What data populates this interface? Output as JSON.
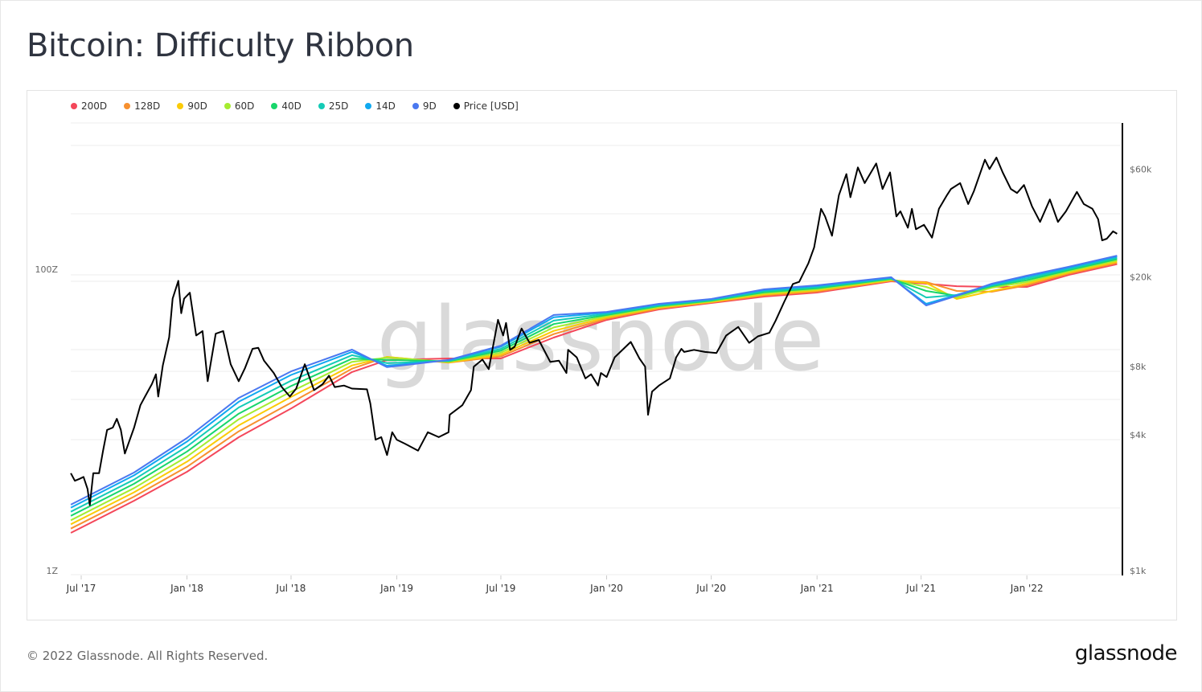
{
  "title": "Bitcoin: Difficulty Ribbon",
  "footer": {
    "copyright": "© 2022 Glassnode. All Rights Reserved.",
    "logo": "glassnode"
  },
  "watermark": "glassnode",
  "chart_data": {
    "type": "line",
    "title": "Bitcoin: Difficulty Ribbon",
    "legend_position": "top-left",
    "grid": true,
    "x_ticks": [
      "Jul '17",
      "Jan '18",
      "Jul '18",
      "Jan '19",
      "Jul '19",
      "Jan '20",
      "Jul '20",
      "Jan '21",
      "Jul '21",
      "Jan '22"
    ],
    "x_range": [
      "2017-06-13",
      "2022-06-07"
    ],
    "left_axis": {
      "scale": "log",
      "ticks": [
        "1Z",
        "100Z"
      ],
      "range": [
        1,
        160
      ]
    },
    "right_axis": {
      "scale": "log",
      "ticks": [
        "$1k",
        "$4k",
        "$8k",
        "$20k",
        "$60k"
      ],
      "tick_values": [
        1000,
        4000,
        8000,
        20000,
        60000
      ],
      "range": [
        1000,
        100000
      ]
    },
    "legend": [
      {
        "name": "200D",
        "color": "#f4475a"
      },
      {
        "name": "128D",
        "color": "#f7902f"
      },
      {
        "name": "90D",
        "color": "#fbcb07"
      },
      {
        "name": "60D",
        "color": "#a5ec30"
      },
      {
        "name": "40D",
        "color": "#18d66b"
      },
      {
        "name": "25D",
        "color": "#14cbb6"
      },
      {
        "name": "14D",
        "color": "#10a9f0"
      },
      {
        "name": "9D",
        "color": "#4a78f0"
      },
      {
        "name": "Price [USD]",
        "color": "#000000"
      }
    ],
    "ribbon_dates": [
      "2017-06-13",
      "2017-10-01",
      "2018-01-01",
      "2018-04-01",
      "2018-07-01",
      "2018-10-15",
      "2018-12-15",
      "2019-04-01",
      "2019-07-01",
      "2019-10-01",
      "2020-01-01",
      "2020-04-01",
      "2020-07-01",
      "2020-10-01",
      "2021-01-01",
      "2021-05-10",
      "2021-07-10",
      "2021-09-01",
      "2021-11-01",
      "2022-01-01",
      "2022-03-15",
      "2022-06-07"
    ],
    "ribbon_series": [
      {
        "name": "200D",
        "axis": "left",
        "values": [
          1.78,
          2.91,
          4.53,
          7.68,
          11.9,
          20.8,
          25.0,
          25.6,
          25.6,
          35.2,
          46.1,
          54.1,
          59.7,
          65.9,
          70.0,
          83.2,
          80.2,
          77.2,
          76.3,
          76.3,
          91.8,
          108
        ]
      },
      {
        "name": "128D",
        "axis": "left",
        "values": [
          1.9,
          3.1,
          4.89,
          8.4,
          13.0,
          21.9,
          26.2,
          24.0,
          26.4,
          37.1,
          47.0,
          54.8,
          60.3,
          67.0,
          71.2,
          83.9,
          82.2,
          71.8,
          70.9,
          78.3,
          93.5,
          109.9
        ]
      },
      {
        "name": "90D",
        "axis": "left",
        "values": [
          2.03,
          3.31,
          5.29,
          9.2,
          14.2,
          23.0,
          26.2,
          24.1,
          27.1,
          39.0,
          47.9,
          55.6,
          60.8,
          68.1,
          72.4,
          84.7,
          81.1,
          63.5,
          71.8,
          80.4,
          95.2,
          112.2
        ]
      },
      {
        "name": "60D",
        "axis": "left",
        "values": [
          2.16,
          3.53,
          5.71,
          10.1,
          15.4,
          24.3,
          25.9,
          24.3,
          27.9,
          41.1,
          48.8,
          56.2,
          61.4,
          69.2,
          73.6,
          85.5,
          76.3,
          65.0,
          75.4,
          82.4,
          97.0,
          114.5
        ]
      },
      {
        "name": "40D",
        "axis": "left",
        "values": [
          2.31,
          3.77,
          6.17,
          11.0,
          16.8,
          25.5,
          25.0,
          24.5,
          28.8,
          43.3,
          49.7,
          57.0,
          61.9,
          70.4,
          74.8,
          86.3,
          71.8,
          66.7,
          77.2,
          84.6,
          98.8,
          116.7
        ]
      },
      {
        "name": "25D",
        "axis": "left",
        "values": [
          2.46,
          4.02,
          6.67,
          12.1,
          18.2,
          26.9,
          23.8,
          24.7,
          29.6,
          45.6,
          50.6,
          57.7,
          62.5,
          71.6,
          76.0,
          87.1,
          65.0,
          67.5,
          78.2,
          86.8,
          100.6,
          119.1
        ]
      },
      {
        "name": "14D",
        "axis": "left",
        "values": [
          2.62,
          4.29,
          7.19,
          13.2,
          19.9,
          28.3,
          22.9,
          24.9,
          30.6,
          48.0,
          51.5,
          58.5,
          63.3,
          72.8,
          77.4,
          87.9,
          59.0,
          67.5,
          79.2,
          89.1,
          102.5,
          121.6
        ]
      },
      {
        "name": "9D",
        "axis": "left",
        "values": [
          2.74,
          4.48,
          7.59,
          14.0,
          21.0,
          29.3,
          22.4,
          25.0,
          31.1,
          49.7,
          52.1,
          59.0,
          63.5,
          73.6,
          78.2,
          88.5,
          57.5,
          66.7,
          80.2,
          90.6,
          104,
          123
        ]
      }
    ],
    "price_series": {
      "name": "Price [USD]",
      "axis": "right",
      "points": [
        [
          "2017-06-13",
          2700
        ],
        [
          "2017-06-20",
          2500
        ],
        [
          "2017-06-28",
          2550
        ],
        [
          "2017-07-05",
          2600
        ],
        [
          "2017-07-12",
          2300
        ],
        [
          "2017-07-16",
          1950
        ],
        [
          "2017-07-22",
          2700
        ],
        [
          "2017-08-01",
          2700
        ],
        [
          "2017-08-08",
          3400
        ],
        [
          "2017-08-15",
          4200
        ],
        [
          "2017-08-25",
          4300
        ],
        [
          "2017-09-01",
          4700
        ],
        [
          "2017-09-08",
          4200
        ],
        [
          "2017-09-15",
          3300
        ],
        [
          "2017-09-22",
          3700
        ],
        [
          "2017-10-01",
          4300
        ],
        [
          "2017-10-12",
          5400
        ],
        [
          "2017-10-20",
          5900
        ],
        [
          "2017-11-01",
          6700
        ],
        [
          "2017-11-08",
          7400
        ],
        [
          "2017-11-12",
          5900
        ],
        [
          "2017-11-20",
          8100
        ],
        [
          "2017-12-01",
          10800
        ],
        [
          "2017-12-07",
          16000
        ],
        [
          "2017-12-17",
          19200
        ],
        [
          "2017-12-22",
          13800
        ],
        [
          "2017-12-27",
          16000
        ],
        [
          "2018-01-06",
          17000
        ],
        [
          "2018-01-17",
          11000
        ],
        [
          "2018-01-28",
          11500
        ],
        [
          "2018-02-06",
          6900
        ],
        [
          "2018-02-12",
          8500
        ],
        [
          "2018-02-20",
          11200
        ],
        [
          "2018-03-05",
          11500
        ],
        [
          "2018-03-18",
          8200
        ],
        [
          "2018-04-01",
          6900
        ],
        [
          "2018-04-12",
          7900
        ],
        [
          "2018-04-25",
          9600
        ],
        [
          "2018-05-05",
          9700
        ],
        [
          "2018-05-15",
          8500
        ],
        [
          "2018-06-01",
          7500
        ],
        [
          "2018-06-15",
          6500
        ],
        [
          "2018-06-29",
          5900
        ],
        [
          "2018-07-10",
          6400
        ],
        [
          "2018-07-25",
          8200
        ],
        [
          "2018-08-10",
          6300
        ],
        [
          "2018-08-25",
          6700
        ],
        [
          "2018-09-05",
          7300
        ],
        [
          "2018-09-15",
          6500
        ],
        [
          "2018-10-01",
          6600
        ],
        [
          "2018-10-15",
          6400
        ],
        [
          "2018-11-10",
          6350
        ],
        [
          "2018-11-16",
          5500
        ],
        [
          "2018-11-25",
          3800
        ],
        [
          "2018-12-05",
          3900
        ],
        [
          "2018-12-15",
          3250
        ],
        [
          "2018-12-24",
          4100
        ],
        [
          "2019-01-01",
          3800
        ],
        [
          "2019-01-15",
          3650
        ],
        [
          "2019-02-07",
          3400
        ],
        [
          "2019-02-24",
          4100
        ],
        [
          "2019-03-15",
          3900
        ],
        [
          "2019-04-01",
          4100
        ],
        [
          "2019-04-03",
          4900
        ],
        [
          "2019-04-25",
          5400
        ],
        [
          "2019-05-10",
          6300
        ],
        [
          "2019-05-15",
          8000
        ],
        [
          "2019-05-30",
          8600
        ],
        [
          "2019-06-10",
          7800
        ],
        [
          "2019-06-26",
          12900
        ],
        [
          "2019-07-05",
          11000
        ],
        [
          "2019-07-10",
          12500
        ],
        [
          "2019-07-17",
          9500
        ],
        [
          "2019-07-25",
          9800
        ],
        [
          "2019-08-06",
          11800
        ],
        [
          "2019-08-20",
          10200
        ],
        [
          "2019-09-05",
          10500
        ],
        [
          "2019-09-25",
          8400
        ],
        [
          "2019-10-10",
          8500
        ],
        [
          "2019-10-23",
          7500
        ],
        [
          "2019-10-26",
          9500
        ],
        [
          "2019-11-10",
          8800
        ],
        [
          "2019-11-25",
          7100
        ],
        [
          "2019-12-05",
          7400
        ],
        [
          "2019-12-17",
          6600
        ],
        [
          "2019-12-22",
          7500
        ],
        [
          "2020-01-01",
          7200
        ],
        [
          "2020-01-15",
          8800
        ],
        [
          "2020-02-12",
          10300
        ],
        [
          "2020-02-27",
          8700
        ],
        [
          "2020-03-08",
          8000
        ],
        [
          "2020-03-13",
          4900
        ],
        [
          "2020-03-20",
          6200
        ],
        [
          "2020-04-01",
          6600
        ],
        [
          "2020-04-20",
          7100
        ],
        [
          "2020-05-01",
          8800
        ],
        [
          "2020-05-10",
          9600
        ],
        [
          "2020-05-15",
          9300
        ],
        [
          "2020-06-01",
          9500
        ],
        [
          "2020-06-20",
          9300
        ],
        [
          "2020-07-10",
          9200
        ],
        [
          "2020-07-27",
          11000
        ],
        [
          "2020-08-17",
          12000
        ],
        [
          "2020-09-05",
          10200
        ],
        [
          "2020-09-20",
          10900
        ],
        [
          "2020-10-10",
          11300
        ],
        [
          "2020-10-21",
          12800
        ],
        [
          "2020-11-05",
          15500
        ],
        [
          "2020-11-20",
          18600
        ],
        [
          "2020-12-01",
          19000
        ],
        [
          "2020-12-17",
          23000
        ],
        [
          "2020-12-27",
          27000
        ],
        [
          "2021-01-08",
          40000
        ],
        [
          "2021-01-15",
          37000
        ],
        [
          "2021-01-27",
          30400
        ],
        [
          "2021-02-08",
          46000
        ],
        [
          "2021-02-21",
          57000
        ],
        [
          "2021-02-28",
          45000
        ],
        [
          "2021-03-13",
          61000
        ],
        [
          "2021-03-25",
          52000
        ],
        [
          "2021-04-14",
          63500
        ],
        [
          "2021-04-25",
          49000
        ],
        [
          "2021-05-08",
          58000
        ],
        [
          "2021-05-19",
          37000
        ],
        [
          "2021-05-26",
          39000
        ],
        [
          "2021-06-08",
          33000
        ],
        [
          "2021-06-15",
          40000
        ],
        [
          "2021-06-22",
          32500
        ],
        [
          "2021-07-06",
          34000
        ],
        [
          "2021-07-20",
          29800
        ],
        [
          "2021-08-01",
          40000
        ],
        [
          "2021-08-15",
          46000
        ],
        [
          "2021-08-22",
          49000
        ],
        [
          "2021-09-07",
          52000
        ],
        [
          "2021-09-21",
          42000
        ],
        [
          "2021-10-01",
          48000
        ],
        [
          "2021-10-20",
          66000
        ],
        [
          "2021-10-28",
          60000
        ],
        [
          "2021-11-09",
          67500
        ],
        [
          "2021-11-20",
          58000
        ],
        [
          "2021-12-04",
          49000
        ],
        [
          "2021-12-15",
          47000
        ],
        [
          "2021-12-27",
          51000
        ],
        [
          "2022-01-10",
          41000
        ],
        [
          "2022-01-24",
          35000
        ],
        [
          "2022-02-10",
          44000
        ],
        [
          "2022-02-24",
          35000
        ],
        [
          "2022-03-10",
          39000
        ],
        [
          "2022-03-29",
          47500
        ],
        [
          "2022-04-10",
          42000
        ],
        [
          "2022-04-25",
          40000
        ],
        [
          "2022-05-05",
          36000
        ],
        [
          "2022-05-12",
          29000
        ],
        [
          "2022-05-20",
          29500
        ],
        [
          "2022-05-31",
          31800
        ],
        [
          "2022-06-07",
          31000
        ]
      ]
    }
  }
}
